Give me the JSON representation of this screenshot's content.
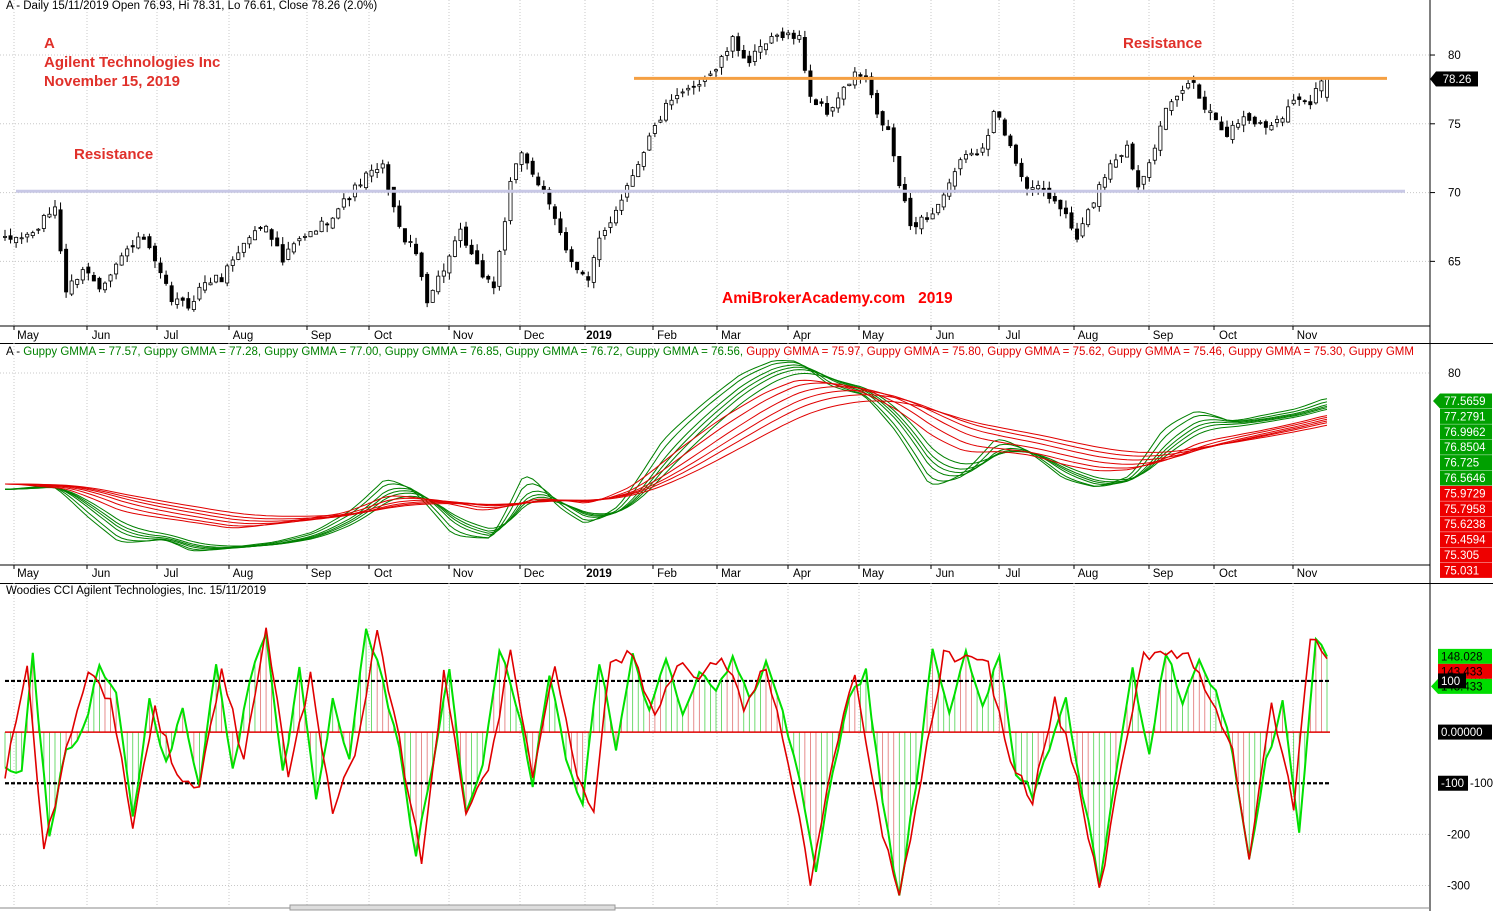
{
  "price_panel": {
    "header": "A - Daily 15/11/2019 Open 76.93, Hi 78.31, Lo 76.61, Close 78.26 (2.0%)",
    "note_lines": [
      "A",
      "Agilent Technologies Inc",
      "November 15, 2019"
    ],
    "resistance_labels": [
      "Resistance",
      "Resistance"
    ],
    "watermark": "AmiBrokerAcademy.com   2019",
    "last_price_label": "78.26",
    "colors": {
      "up": "#000000",
      "down": "#000000",
      "resistance_high": "#f5a043",
      "resistance_low": "#c8c8e6",
      "last_price_bg": "#000000"
    }
  },
  "gmma_panel": {
    "title": "A - ",
    "items": [
      {
        "label": "Guppy GMMA = 77.57,",
        "color": "green"
      },
      {
        "label": "Guppy GMMA = 77.28,",
        "color": "green"
      },
      {
        "label": "Guppy GMMA = 77.00,",
        "color": "green"
      },
      {
        "label": "Guppy GMMA = 76.85,",
        "color": "green"
      },
      {
        "label": "Guppy GMMA = 76.72,",
        "color": "green"
      },
      {
        "label": "Guppy GMMA = 76.56,",
        "color": "green"
      },
      {
        "label": "Guppy GMMA = 75.97,",
        "color": "red"
      },
      {
        "label": "Guppy GMMA = 75.80,",
        "color": "red"
      },
      {
        "label": "Guppy GMMA = 75.62,",
        "color": "red"
      },
      {
        "label": "Guppy GMMA = 75.46,",
        "color": "red"
      },
      {
        "label": "Guppy GMMA = 75.30,",
        "color": "red"
      },
      {
        "label": "Guppy GMM",
        "color": "red"
      }
    ],
    "value_labels_green": [
      "77.5659",
      "77.2791",
      "76.9962",
      "76.8504",
      "76.725",
      "76.5646"
    ],
    "value_labels_red": [
      "75.9729",
      "75.7958",
      "75.6238",
      "75.4594",
      "75.305",
      "75.031"
    ],
    "colors": {
      "short": "#008000",
      "long": "#e00000",
      "green_label_bg": "#00a000",
      "red_label_bg": "#ee0000"
    }
  },
  "cci_panel": {
    "header": "Woodies CCI  Agilent Technologies, Inc. 15/11/2019",
    "value_labels": [
      "148.028",
      "143.433",
      "143.433",
      "100",
      "0.00000",
      "-100"
    ],
    "colors": {
      "cci": "#00e000",
      "turbo": "#e00000",
      "zero_line": "#e00000",
      "band": "#000000"
    }
  },
  "chart_data": [
    {
      "type": "candlestick",
      "title": "A - Daily 15/11/2019",
      "x_ticks": [
        "May",
        "Jun",
        "Jul",
        "Aug",
        "Sep",
        "Oct",
        "Nov",
        "Dec",
        "2019",
        "Feb",
        "Mar",
        "Apr",
        "May",
        "Jun",
        "Jul",
        "Aug",
        "Sep",
        "Oct",
        "Nov"
      ],
      "y_ticks": [
        65,
        70,
        75,
        80
      ],
      "ylim": [
        60.3,
        84.0
      ],
      "last": {
        "open": 76.93,
        "high": 78.31,
        "low": 76.61,
        "close": 78.26,
        "change_pct": 2.0
      },
      "resistance_levels": [
        78.3,
        70.1
      ],
      "close_path": [
        [
          0,
          66.5
        ],
        [
          5,
          67.0
        ],
        [
          9,
          69.0
        ],
        [
          11,
          62.8
        ],
        [
          14,
          64.5
        ],
        [
          17,
          63.2
        ],
        [
          20,
          64.8
        ],
        [
          23,
          66.3
        ],
        [
          25,
          66.6
        ],
        [
          27,
          64.8
        ],
        [
          30,
          62.2
        ],
        [
          33,
          61.8
        ],
        [
          36,
          63.5
        ],
        [
          39,
          63.8
        ],
        [
          41,
          65.2
        ],
        [
          44,
          66.8
        ],
        [
          47,
          67.8
        ],
        [
          50,
          65.0
        ],
        [
          52,
          66.2
        ],
        [
          55,
          67.0
        ],
        [
          58,
          68.0
        ],
        [
          61,
          69.3
        ],
        [
          65,
          71.2
        ],
        [
          68,
          71.8
        ],
        [
          69,
          70.5
        ],
        [
          71,
          67.3
        ],
        [
          74,
          65.5
        ],
        [
          76,
          62.3
        ],
        [
          79,
          64.5
        ],
        [
          82,
          67.0
        ],
        [
          85,
          64.5
        ],
        [
          88,
          63.2
        ],
        [
          91,
          70.5
        ],
        [
          93,
          73.0
        ],
        [
          95,
          71.5
        ],
        [
          97,
          69.8
        ],
        [
          99,
          68.0
        ],
        [
          101,
          66.0
        ],
        [
          103,
          64.5
        ],
        [
          105,
          63.5
        ],
        [
          107,
          66.5
        ],
        [
          109,
          68.0
        ],
        [
          112,
          70.5
        ],
        [
          116,
          74.0
        ],
        [
          119,
          76.2
        ],
        [
          121,
          76.8
        ],
        [
          124,
          77.8
        ],
        [
          128,
          79.0
        ],
        [
          131,
          81.0
        ],
        [
          134,
          79.5
        ],
        [
          137,
          80.8
        ],
        [
          140,
          81.6
        ],
        [
          143,
          81.2
        ],
        [
          145,
          77.0
        ],
        [
          148,
          75.8
        ],
        [
          151,
          77.4
        ],
        [
          153,
          78.6
        ],
        [
          155,
          78.2
        ],
        [
          157,
          75.5
        ],
        [
          159,
          74.5
        ],
        [
          161,
          70.6
        ],
        [
          163,
          67.6
        ],
        [
          167,
          68.5
        ],
        [
          170,
          70.4
        ],
        [
          173,
          73.0
        ],
        [
          175,
          72.5
        ],
        [
          177,
          74.5
        ],
        [
          178,
          76.2
        ],
        [
          181,
          73.2
        ],
        [
          184,
          70.5
        ],
        [
          187,
          70.0
        ],
        [
          190,
          69.0
        ],
        [
          193,
          66.6
        ],
        [
          196,
          69.5
        ],
        [
          199,
          72.2
        ],
        [
          202,
          73.3
        ],
        [
          204,
          70.5
        ],
        [
          207,
          73.5
        ],
        [
          209,
          75.8
        ],
        [
          212,
          77.5
        ],
        [
          214,
          78.1
        ],
        [
          216,
          76.2
        ],
        [
          218,
          75.5
        ],
        [
          220,
          74.3
        ],
        [
          223,
          75.5
        ],
        [
          227,
          74.8
        ],
        [
          230,
          75.7
        ],
        [
          233,
          77.0
        ],
        [
          235,
          76.7
        ],
        [
          237,
          78.26
        ]
      ],
      "panel": "price"
    },
    {
      "type": "line",
      "title": "Guppy GMMA",
      "x_ticks": [
        "May",
        "Jun",
        "Jul",
        "Aug",
        "Sep",
        "Oct",
        "Nov",
        "Dec",
        "2019",
        "Feb",
        "Mar",
        "Apr",
        "May",
        "Jun",
        "Jul",
        "Aug",
        "Sep",
        "Oct",
        "Nov"
      ],
      "y_ticks": [
        80
      ],
      "latest_values": {
        "short": [
          77.57,
          77.28,
          77.0,
          76.85,
          76.72,
          76.56
        ],
        "long": [
          75.97,
          75.8,
          75.62,
          75.46,
          75.3
        ]
      },
      "series_short_proxy": [
        [
          0,
          69.0
        ],
        [
          8,
          69.4
        ],
        [
          14,
          66.3
        ],
        [
          20,
          63.8
        ],
        [
          28,
          64.3
        ],
        [
          33,
          63.0
        ],
        [
          40,
          63.5
        ],
        [
          48,
          64.0
        ],
        [
          55,
          65.0
        ],
        [
          62,
          67.2
        ],
        [
          68,
          70.2
        ],
        [
          73,
          68.7
        ],
        [
          80,
          64.4
        ],
        [
          87,
          64.3
        ],
        [
          93,
          71.0
        ],
        [
          99,
          67.0
        ],
        [
          104,
          65.5
        ],
        [
          110,
          67.5
        ],
        [
          118,
          74.0
        ],
        [
          126,
          77.6
        ],
        [
          132,
          80.0
        ],
        [
          138,
          81.2
        ],
        [
          142,
          81.0
        ],
        [
          148,
          78.5
        ],
        [
          154,
          77.8
        ],
        [
          160,
          74.0
        ],
        [
          166,
          68.8
        ],
        [
          172,
          70.5
        ],
        [
          178,
          74.0
        ],
        [
          184,
          72.2
        ],
        [
          190,
          69.7
        ],
        [
          196,
          69.0
        ],
        [
          202,
          70.2
        ],
        [
          208,
          74.9
        ],
        [
          214,
          76.4
        ],
        [
          220,
          75.2
        ],
        [
          226,
          75.9
        ],
        [
          232,
          76.5
        ],
        [
          237,
          77.5
        ]
      ],
      "series_long_proxy": [
        [
          0,
          69.5
        ],
        [
          10,
          69.0
        ],
        [
          20,
          66.7
        ],
        [
          30,
          66.0
        ],
        [
          40,
          65.2
        ],
        [
          50,
          66.0
        ],
        [
          60,
          66.8
        ],
        [
          68,
          68.6
        ],
        [
          76,
          67.8
        ],
        [
          85,
          66.8
        ],
        [
          95,
          68.2
        ],
        [
          104,
          67.5
        ],
        [
          112,
          69.5
        ],
        [
          120,
          73.0
        ],
        [
          128,
          76.0
        ],
        [
          136,
          78.4
        ],
        [
          142,
          79.5
        ],
        [
          148,
          78.8
        ],
        [
          154,
          77.8
        ],
        [
          160,
          76.0
        ],
        [
          166,
          73.5
        ],
        [
          172,
          72.2
        ],
        [
          178,
          72.5
        ],
        [
          184,
          72.0
        ],
        [
          190,
          71.0
        ],
        [
          196,
          70.5
        ],
        [
          202,
          70.8
        ],
        [
          208,
          72.0
        ],
        [
          214,
          73.5
        ],
        [
          220,
          74.0
        ],
        [
          226,
          74.6
        ],
        [
          232,
          75.3
        ],
        [
          237,
          76.0
        ]
      ],
      "panel": "gmma"
    },
    {
      "type": "line",
      "title": "Woodies CCI  Agilent Technologies, Inc. 15/11/2019",
      "x_ticks": [
        "May",
        "Jun",
        "Jul",
        "Aug",
        "Sep",
        "Oct",
        "Nov",
        "Dec",
        "2019",
        "Feb",
        "Mar",
        "Apr",
        "May",
        "Jun",
        "Jul",
        "Aug",
        "Sep",
        "Oct",
        "Nov"
      ],
      "y_ticks": [
        100,
        -100,
        -200,
        -300
      ],
      "ylim": [
        -340,
        225
      ],
      "bands": [
        100,
        0,
        -100
      ],
      "latest": {
        "cci": 148.028,
        "turbo": 143.433
      },
      "cci_path": [
        [
          0,
          -60
        ],
        [
          3,
          -80
        ],
        [
          5,
          150
        ],
        [
          8,
          -200
        ],
        [
          11,
          -30
        ],
        [
          14,
          0
        ],
        [
          17,
          130
        ],
        [
          20,
          80
        ],
        [
          23,
          -170
        ],
        [
          26,
          60
        ],
        [
          29,
          -60
        ],
        [
          32,
          40
        ],
        [
          35,
          -100
        ],
        [
          38,
          140
        ],
        [
          41,
          -80
        ],
        [
          44,
          100
        ],
        [
          47,
          200
        ],
        [
          50,
          -80
        ],
        [
          53,
          120
        ],
        [
          56,
          -140
        ],
        [
          59,
          60
        ],
        [
          62,
          -60
        ],
        [
          65,
          200
        ],
        [
          68,
          100
        ],
        [
          71,
          -40
        ],
        [
          74,
          -240
        ],
        [
          77,
          -60
        ],
        [
          80,
          120
        ],
        [
          83,
          -160
        ],
        [
          86,
          -60
        ],
        [
          89,
          160
        ],
        [
          92,
          60
        ],
        [
          95,
          -100
        ],
        [
          98,
          120
        ],
        [
          101,
          -60
        ],
        [
          104,
          -140
        ],
        [
          107,
          140
        ],
        [
          110,
          -40
        ],
        [
          113,
          160
        ],
        [
          116,
          40
        ],
        [
          119,
          140
        ],
        [
          122,
          40
        ],
        [
          125,
          120
        ],
        [
          128,
          80
        ],
        [
          131,
          150
        ],
        [
          134,
          60
        ],
        [
          137,
          140
        ],
        [
          140,
          40
        ],
        [
          143,
          -80
        ],
        [
          146,
          -270
        ],
        [
          149,
          -80
        ],
        [
          152,
          60
        ],
        [
          155,
          120
        ],
        [
          158,
          -140
        ],
        [
          161,
          -320
        ],
        [
          164,
          -100
        ],
        [
          167,
          160
        ],
        [
          170,
          40
        ],
        [
          173,
          150
        ],
        [
          176,
          60
        ],
        [
          179,
          140
        ],
        [
          182,
          -80
        ],
        [
          185,
          -120
        ],
        [
          188,
          -40
        ],
        [
          191,
          60
        ],
        [
          194,
          -120
        ],
        [
          197,
          -300
        ],
        [
          200,
          -80
        ],
        [
          203,
          120
        ],
        [
          206,
          -40
        ],
        [
          209,
          160
        ],
        [
          212,
          60
        ],
        [
          215,
          140
        ],
        [
          218,
          80
        ],
        [
          221,
          -40
        ],
        [
          224,
          -250
        ],
        [
          227,
          -60
        ],
        [
          230,
          60
        ],
        [
          233,
          -200
        ],
        [
          236,
          180
        ],
        [
          238,
          148
        ]
      ],
      "turbo_path": [
        [
          0,
          -80
        ],
        [
          4,
          120
        ],
        [
          7,
          -230
        ],
        [
          11,
          -40
        ],
        [
          15,
          120
        ],
        [
          19,
          60
        ],
        [
          23,
          -180
        ],
        [
          27,
          40
        ],
        [
          31,
          -80
        ],
        [
          35,
          -110
        ],
        [
          39,
          130
        ],
        [
          43,
          -60
        ],
        [
          47,
          210
        ],
        [
          51,
          -90
        ],
        [
          55,
          110
        ],
        [
          59,
          -150
        ],
        [
          63,
          -50
        ],
        [
          67,
          190
        ],
        [
          71,
          -20
        ],
        [
          75,
          -250
        ],
        [
          79,
          110
        ],
        [
          83,
          -150
        ],
        [
          87,
          -70
        ],
        [
          91,
          150
        ],
        [
          95,
          -80
        ],
        [
          99,
          130
        ],
        [
          103,
          -80
        ],
        [
          106,
          -150
        ],
        [
          109,
          140
        ],
        [
          113,
          150
        ],
        [
          117,
          30
        ],
        [
          121,
          140
        ],
        [
          125,
          100
        ],
        [
          129,
          150
        ],
        [
          133,
          50
        ],
        [
          137,
          130
        ],
        [
          141,
          -60
        ],
        [
          145,
          -290
        ],
        [
          149,
          -60
        ],
        [
          153,
          110
        ],
        [
          157,
          -150
        ],
        [
          161,
          -325
        ],
        [
          165,
          -90
        ],
        [
          169,
          150
        ],
        [
          173,
          140
        ],
        [
          177,
          130
        ],
        [
          181,
          -60
        ],
        [
          185,
          -130
        ],
        [
          189,
          60
        ],
        [
          193,
          -90
        ],
        [
          197,
          -310
        ],
        [
          201,
          -70
        ],
        [
          205,
          150
        ],
        [
          209,
          160
        ],
        [
          213,
          150
        ],
        [
          217,
          70
        ],
        [
          221,
          -30
        ],
        [
          224,
          -260
        ],
        [
          228,
          60
        ],
        [
          232,
          -150
        ],
        [
          235,
          190
        ],
        [
          238,
          143
        ]
      ],
      "panel": "cci"
    }
  ]
}
